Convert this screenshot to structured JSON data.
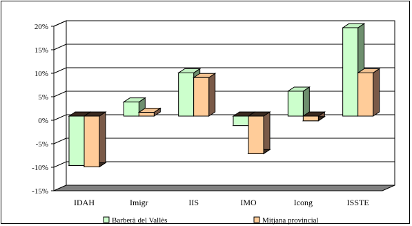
{
  "chart_data": {
    "type": "bar",
    "categories": [
      "IDAH",
      "Imigr",
      "IIS",
      "IMO",
      "Icong",
      "ISSTE"
    ],
    "series": [
      {
        "name": "Barberà del Vallès",
        "color": "#CCFFCC",
        "values": [
          -10.5,
          3.0,
          9.2,
          -2.0,
          5.3,
          18.8
        ]
      },
      {
        "name": "Mitjana provincial",
        "color": "#FFCC99",
        "values": [
          -10.8,
          0.8,
          8.2,
          -8.0,
          -1.0,
          9.2
        ]
      }
    ],
    "yticks": [
      "20%",
      "15%",
      "10%",
      "5%",
      "0%",
      "-5%",
      "-10%",
      "-15%"
    ],
    "ylim": [
      -15,
      20
    ],
    "grid": true,
    "legend": "bottom"
  }
}
